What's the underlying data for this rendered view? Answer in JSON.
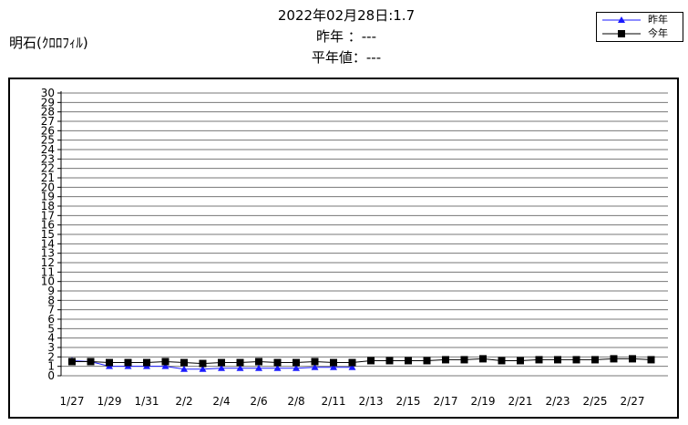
{
  "station": "明石(ｸﾛﾛﾌｨﾙ)",
  "header": {
    "line1": "2022年02月28日:1.7",
    "line2": "昨年 ：---",
    "line3": "平年値：---"
  },
  "legend": {
    "last_year": "昨年",
    "this_year": "今年"
  },
  "colors": {
    "last_year": "#1a1aff",
    "this_year": "#000000",
    "grid": "#777777"
  },
  "chart_data": {
    "type": "line",
    "ylim": [
      0,
      30
    ],
    "yticks": [
      0,
      1,
      2,
      3,
      4,
      5,
      6,
      7,
      8,
      9,
      10,
      11,
      12,
      13,
      14,
      15,
      16,
      17,
      18,
      19,
      20,
      21,
      22,
      23,
      24,
      25,
      26,
      27,
      28,
      29,
      30
    ],
    "x_dates": [
      "1/27",
      "1/28",
      "1/29",
      "1/30",
      "1/31",
      "2/1",
      "2/2",
      "2/3",
      "2/4",
      "2/5",
      "2/6",
      "2/7",
      "2/8",
      "2/9",
      "2/11",
      "2/12",
      "2/13",
      "2/14",
      "2/15",
      "2/16",
      "2/17",
      "2/18",
      "2/19",
      "2/20",
      "2/21",
      "2/22",
      "2/23",
      "2/24",
      "2/25",
      "2/26",
      "2/27",
      "2/28"
    ],
    "xtick_labels": [
      "1/27",
      "1/29",
      "1/31",
      "2/2",
      "2/4",
      "2/6",
      "2/8",
      "2/11",
      "2/13",
      "2/15",
      "2/17",
      "2/19",
      "2/21",
      "2/23",
      "2/25",
      "2/27"
    ],
    "grid": true,
    "series": [
      {
        "name": "昨年",
        "marker": "triangle",
        "values": [
          1.6,
          1.5,
          1.0,
          1.0,
          1.0,
          1.0,
          0.7,
          0.7,
          0.8,
          0.8,
          0.8,
          0.8,
          0.8,
          0.9,
          0.9,
          0.9,
          null,
          null,
          null,
          null,
          null,
          null,
          null,
          null,
          null,
          null,
          null,
          null,
          null,
          null,
          null,
          null
        ]
      },
      {
        "name": "今年",
        "marker": "square",
        "values": [
          1.5,
          1.5,
          1.4,
          1.4,
          1.4,
          1.5,
          1.4,
          1.3,
          1.4,
          1.4,
          1.5,
          1.4,
          1.4,
          1.5,
          1.4,
          1.4,
          1.6,
          1.6,
          1.6,
          1.6,
          1.7,
          1.7,
          1.8,
          1.6,
          1.6,
          1.7,
          1.7,
          1.7,
          1.7,
          1.8,
          1.8,
          1.7
        ]
      }
    ]
  }
}
